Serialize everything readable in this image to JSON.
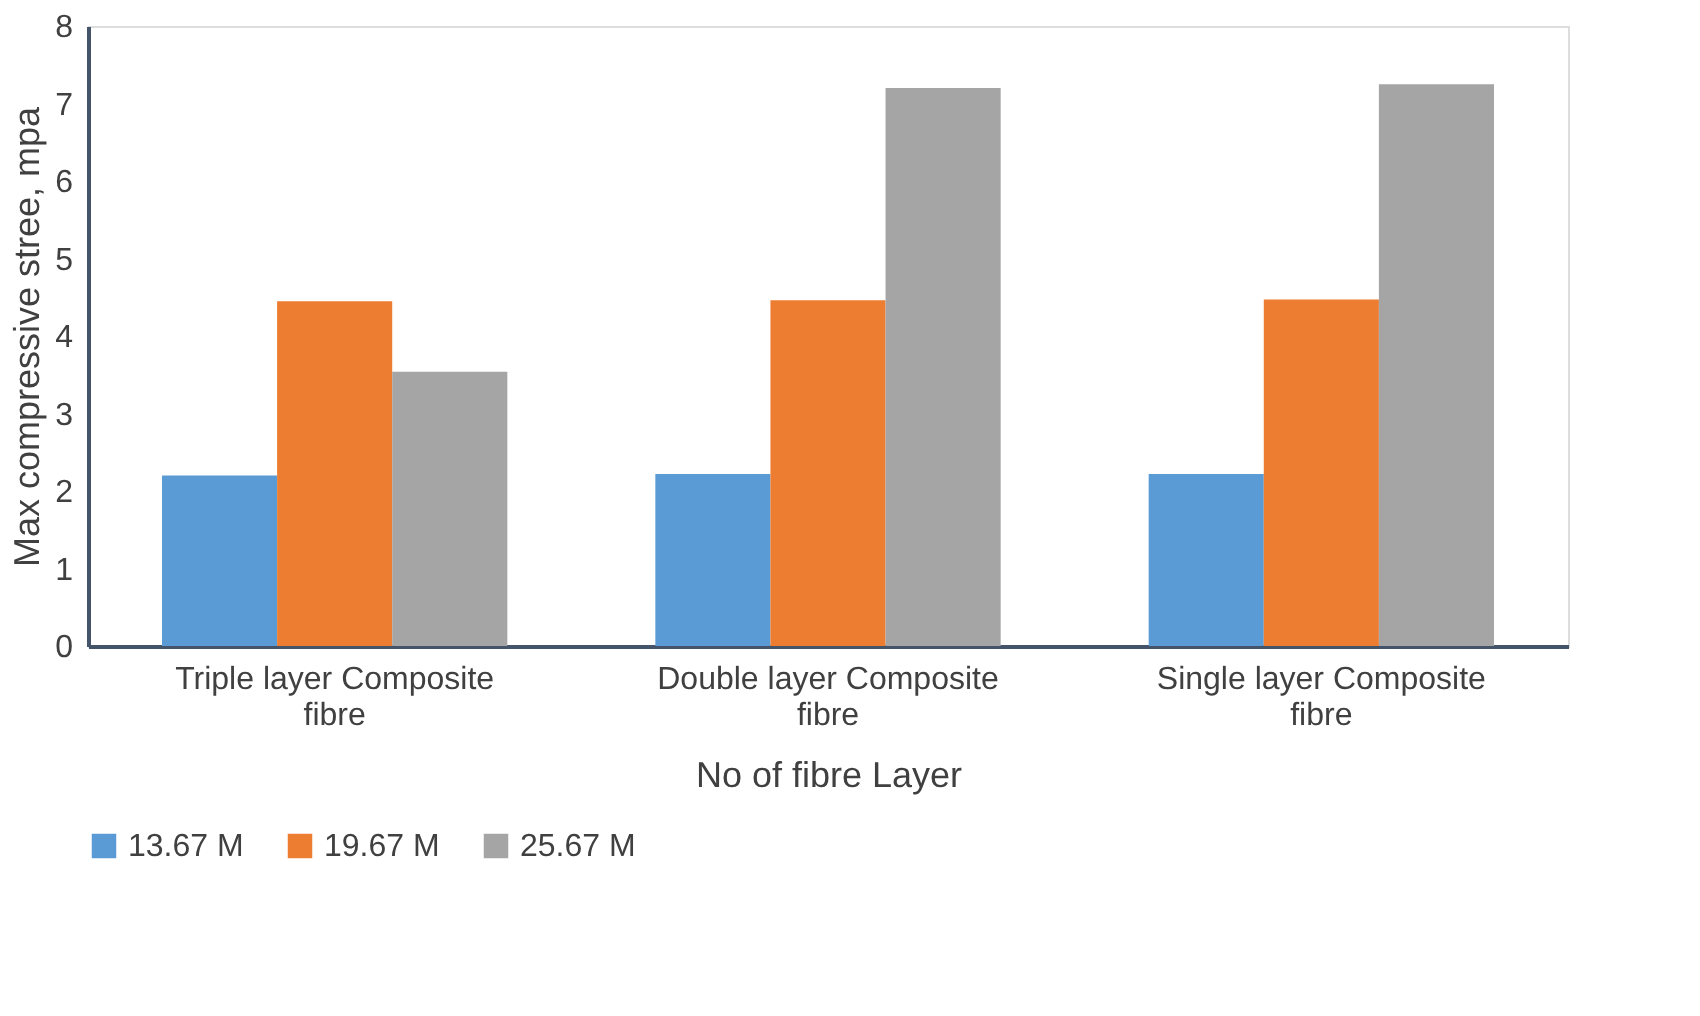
{
  "chart_data": {
    "type": "bar",
    "xlabel": "No of fibre Layer",
    "ylabel": "Max compressive stree, mpa",
    "categories": [
      "Triple layer Composite fibre",
      "Double layer Composite fibre",
      "Single layer Composite fibre"
    ],
    "series": [
      {
        "name": "13.67 M",
        "color": "#5b9bd5",
        "values": [
          2.2,
          2.22,
          2.22
        ]
      },
      {
        "name": "19.67 M",
        "color": "#ed7d31",
        "values": [
          4.45,
          4.46,
          4.47
        ]
      },
      {
        "name": "25.67 M",
        "color": "#a5a5a5",
        "values": [
          3.54,
          7.2,
          7.25
        ]
      }
    ],
    "ylim": [
      0,
      8
    ],
    "yticks": [
      0,
      1,
      2,
      3,
      4,
      5,
      6,
      7,
      8
    ],
    "grid": false,
    "legend": "bottom"
  }
}
